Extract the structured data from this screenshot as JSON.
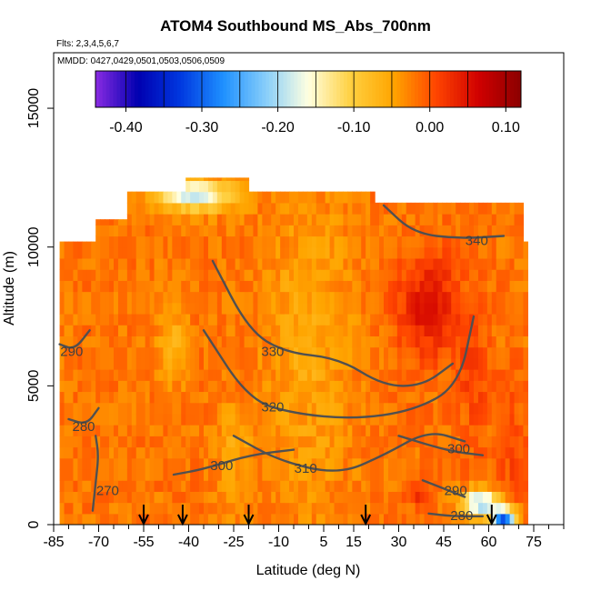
{
  "chart_data": {
    "type": "heatmap",
    "title": "ATOM4 Southbound MS_Abs_700nm",
    "flights_note": "Flts: 2,3,4,5,6,7",
    "mmdd_note": "MMDD: 0427,0429,0501,0503,0506,0509",
    "xlabel": "Latitude (deg N)",
    "ylabel": "Altitude (m)",
    "xlim": [
      -85,
      85
    ],
    "ylim": [
      0,
      17000
    ],
    "x_ticks": [
      -85,
      -70,
      -55,
      -40,
      -25,
      -10,
      5,
      15,
      30,
      45,
      60,
      75
    ],
    "x_minor_step": 5,
    "y_ticks": [
      0,
      5000,
      10000,
      15000
    ],
    "colorbar": {
      "range": [
        -0.44,
        0.12
      ],
      "ticks": [
        -0.4,
        -0.3,
        -0.2,
        -0.1,
        0.0,
        0.1
      ],
      "tick_labels": [
        "-0.40",
        "-0.30",
        "-0.20",
        "-0.10",
        "0.00",
        "0.10"
      ],
      "colors": [
        "#8a2be2",
        "#0000b0",
        "#0038e0",
        "#1e90ff",
        "#87cefa",
        "#ffffe0",
        "#ffd040",
        "#ffa500",
        "#ff4500",
        "#d00000",
        "#8b0000"
      ]
    },
    "theta_contours": [
      {
        "label": "270",
        "label_at": [
          -67,
          1200
        ],
        "points": [
          [
            -72,
            500
          ],
          [
            -71,
            1500
          ],
          [
            -70,
            2500
          ],
          [
            -71,
            3200
          ]
        ]
      },
      {
        "label": "280",
        "label_at": [
          -75,
          3500
        ],
        "points": [
          [
            -80,
            3800
          ],
          [
            -74,
            3600
          ],
          [
            -70,
            4200
          ]
        ]
      },
      {
        "label": "290",
        "label_at": [
          -79,
          6200
        ],
        "points": [
          [
            -83,
            6500
          ],
          [
            -78,
            6300
          ],
          [
            -73,
            7000
          ]
        ]
      },
      {
        "label": "300",
        "label_at": [
          -29,
          2100
        ],
        "points": [
          [
            -45,
            1800
          ],
          [
            -35,
            2000
          ],
          [
            -20,
            2500
          ],
          [
            -5,
            2700
          ]
        ]
      },
      {
        "label": "310",
        "label_at": [
          -1,
          2000
        ],
        "points": [
          [
            -25,
            3200
          ],
          [
            -10,
            2300
          ],
          [
            10,
            1800
          ],
          [
            25,
            2500
          ],
          [
            40,
            3400
          ],
          [
            52,
            3000
          ]
        ]
      },
      {
        "label": "320",
        "label_at": [
          -12,
          4200
        ],
        "points": [
          [
            -35,
            7000
          ],
          [
            -20,
            4500
          ],
          [
            -5,
            4000
          ],
          [
            15,
            3800
          ],
          [
            35,
            4100
          ],
          [
            50,
            5000
          ],
          [
            55,
            7500
          ]
        ]
      },
      {
        "label": "330",
        "label_at": [
          -12,
          6200
        ],
        "points": [
          [
            -32,
            9500
          ],
          [
            -20,
            7000
          ],
          [
            -8,
            6200
          ],
          [
            10,
            6000
          ],
          [
            25,
            5000
          ],
          [
            38,
            5000
          ],
          [
            48,
            5800
          ]
        ]
      },
      {
        "label": "340",
        "label_at": [
          56,
          10200
        ],
        "points": [
          [
            25,
            11500
          ],
          [
            35,
            10500
          ],
          [
            50,
            10300
          ],
          [
            65,
            10400
          ]
        ]
      },
      {
        "label": "300",
        "label_at": [
          50,
          2700
        ],
        "points": [
          [
            30,
            3200
          ],
          [
            42,
            2800
          ],
          [
            50,
            2600
          ],
          [
            58,
            2500
          ]
        ]
      },
      {
        "label": "290",
        "label_at": [
          49,
          1200
        ],
        "points": [
          [
            38,
            1600
          ],
          [
            45,
            1300
          ],
          [
            52,
            1000
          ]
        ]
      },
      {
        "label": "280",
        "label_at": [
          51,
          300
        ],
        "points": [
          [
            40,
            400
          ],
          [
            48,
            300
          ],
          [
            58,
            300
          ]
        ]
      }
    ],
    "flight_profile_arrows_lat": [
      -55,
      -42,
      -20,
      19,
      61
    ]
  }
}
